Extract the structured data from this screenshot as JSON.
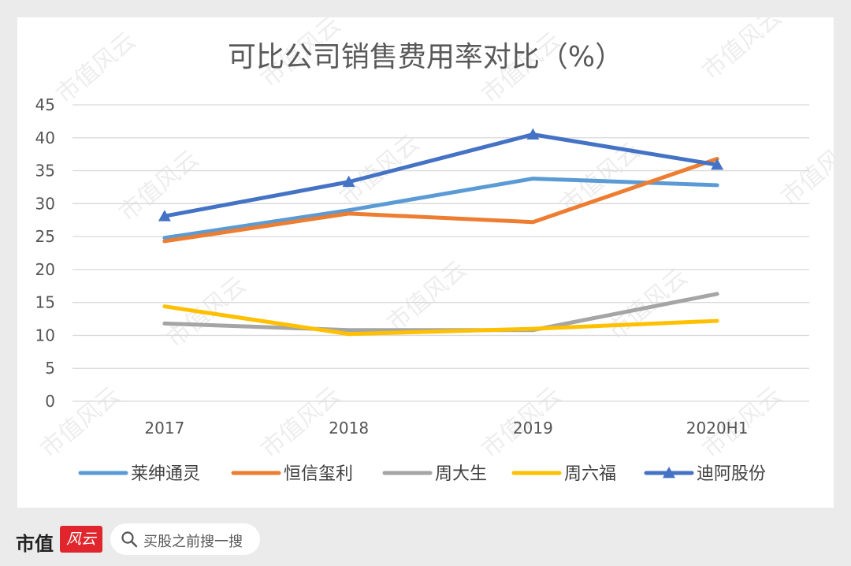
{
  "chart_data": {
    "type": "line",
    "title": "可比公司销售费用率对比（%）",
    "categories": [
      "2017",
      "2018",
      "2019",
      "2020H1"
    ],
    "ylim": [
      0,
      45
    ],
    "yticks": [
      "0",
      "5",
      "10",
      "15",
      "20",
      "25",
      "30",
      "35",
      "40",
      "45"
    ],
    "grid": true,
    "legend_position": "bottom",
    "series": [
      {
        "name": "莱绅通灵",
        "values": [
          24.8,
          29.0,
          33.8,
          32.8
        ],
        "color": "#5b9bd5",
        "marker": "none"
      },
      {
        "name": "恒信玺利",
        "values": [
          24.3,
          28.5,
          27.2,
          36.8
        ],
        "color": "#ed7d31",
        "marker": "none"
      },
      {
        "name": "周大生",
        "values": [
          11.8,
          10.8,
          10.8,
          16.3
        ],
        "color": "#a5a5a5",
        "marker": "none"
      },
      {
        "name": "周六福",
        "values": [
          14.4,
          10.2,
          11.0,
          12.2
        ],
        "color": "#ffc000",
        "marker": "none"
      },
      {
        "name": "迪阿股份",
        "values": [
          28.1,
          33.3,
          40.5,
          35.9
        ],
        "color": "#4472c4",
        "marker": "triangle"
      }
    ]
  },
  "watermark": "市值风云",
  "footer": {
    "brand": "市值",
    "badge": "风云",
    "search_placeholder": "买股之前搜一搜"
  }
}
